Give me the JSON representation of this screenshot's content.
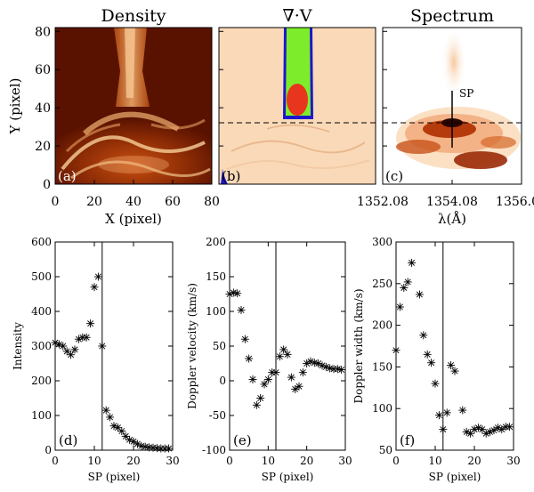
{
  "top": {
    "titles": {
      "density": "Density",
      "divergence": "∇·V",
      "spectrum": "Spectrum"
    },
    "ylabel": "Y (pixel)",
    "y_ticks": [
      "0",
      "20",
      "40",
      "60",
      "80"
    ],
    "density_x_ticks": [
      "0",
      "20",
      "40",
      "60",
      "80"
    ],
    "density_xlabel": "X (pixel)",
    "spectrum_x_ticks": [
      "1352.08",
      "1354.08",
      "1356.08"
    ],
    "spectrum_xlabel": "λ(Å)",
    "sp_marker": "SP",
    "panel_labels": {
      "a": "(a)",
      "b": "(b)",
      "c": "(c)"
    },
    "dashed_line_y_pixel": 32,
    "colors": {
      "density_dark": "#5a1200",
      "density_bright": "#f9d4a0",
      "div_bg": "#fad9b8",
      "div_green": "#7ded2b",
      "div_red": "#e8351e",
      "div_blue": "#1d17c9",
      "spectrum_dark": "#3a0800"
    }
  },
  "chart_data": [
    {
      "type": "scatter",
      "panel": "(d)",
      "xlabel": "SP (pixel)",
      "ylabel": "Intensity",
      "xlim": [
        0,
        30
      ],
      "ylim": [
        0,
        600
      ],
      "x_ticks": [
        0,
        10,
        20,
        30
      ],
      "y_ticks": [
        0,
        100,
        200,
        300,
        400,
        500,
        600
      ],
      "vline_x": 12,
      "marker": "asterisk",
      "x": [
        0,
        1,
        2,
        3,
        4,
        5,
        6,
        7,
        8,
        9,
        10,
        11,
        12,
        13,
        14,
        15,
        16,
        17,
        18,
        19,
        20,
        21,
        22,
        23,
        24,
        25,
        26,
        27,
        28,
        29
      ],
      "y": [
        310,
        305,
        300,
        285,
        275,
        290,
        320,
        325,
        325,
        365,
        470,
        500,
        300,
        115,
        95,
        70,
        65,
        55,
        40,
        30,
        25,
        18,
        12,
        10,
        8,
        7,
        6,
        5,
        5,
        5
      ]
    },
    {
      "type": "scatter",
      "panel": "(e)",
      "xlabel": "SP (pixel)",
      "ylabel": "Doppler velocity (km/s)",
      "xlim": [
        0,
        30
      ],
      "ylim": [
        -100,
        200
      ],
      "x_ticks": [
        0,
        10,
        20,
        30
      ],
      "y_ticks": [
        -100,
        -50,
        0,
        50,
        100,
        150,
        200
      ],
      "vline_x": 12,
      "marker": "asterisk",
      "x": [
        0,
        1,
        2,
        3,
        4,
        5,
        6,
        7,
        8,
        9,
        10,
        11,
        12,
        13,
        14,
        15,
        16,
        17,
        18,
        19,
        20,
        21,
        22,
        23,
        24,
        25,
        26,
        27,
        28,
        29
      ],
      "y": [
        125,
        127,
        126,
        102,
        60,
        32,
        2,
        -35,
        -25,
        -5,
        2,
        12,
        12,
        35,
        45,
        38,
        5,
        -12,
        -8,
        12,
        25,
        28,
        26,
        25,
        22,
        20,
        18,
        17,
        17,
        16
      ]
    },
    {
      "type": "scatter",
      "panel": "(f)",
      "xlabel": "SP (pixel)",
      "ylabel": "Doppler width (km/s)",
      "xlim": [
        0,
        30
      ],
      "ylim": [
        50,
        300
      ],
      "x_ticks": [
        0,
        10,
        20,
        30
      ],
      "y_ticks": [
        50,
        100,
        150,
        200,
        250,
        300
      ],
      "vline_x": 12,
      "marker": "asterisk",
      "x": [
        0,
        1,
        2,
        3,
        4,
        6,
        7,
        8,
        9,
        10,
        11,
        12,
        13,
        14,
        15,
        17,
        18,
        19,
        20,
        21,
        22,
        23,
        24,
        25,
        26,
        27,
        28,
        29
      ],
      "y": [
        170,
        222,
        245,
        252,
        275,
        237,
        188,
        165,
        155,
        130,
        92,
        75,
        95,
        152,
        145,
        98,
        72,
        70,
        75,
        77,
        75,
        70,
        72,
        74,
        77,
        75,
        78,
        78
      ]
    }
  ]
}
